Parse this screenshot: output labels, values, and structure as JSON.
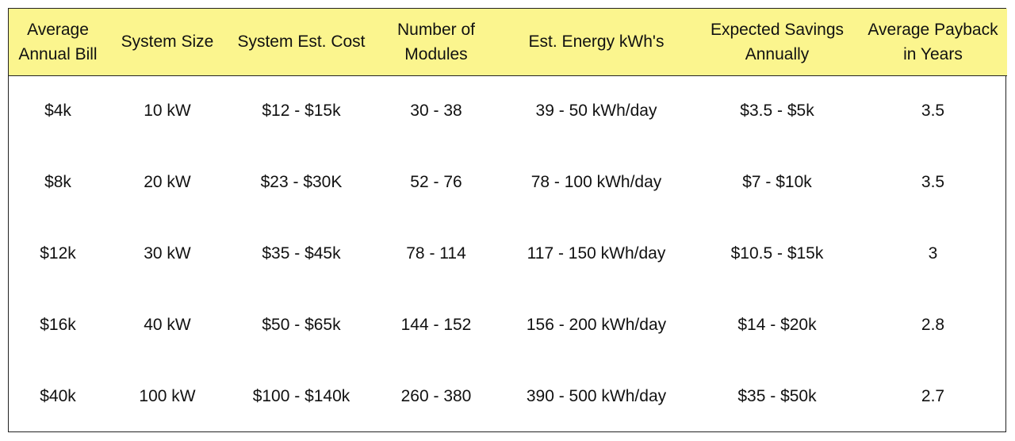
{
  "table": {
    "headers": [
      {
        "line1": "Average",
        "line2": "Annual Bill"
      },
      {
        "line1": "System Size",
        "line2": ""
      },
      {
        "line1": "System Est. Cost",
        "line2": ""
      },
      {
        "line1": "Number of",
        "line2": "Modules"
      },
      {
        "line1": "Est. Energy kWh's",
        "line2": ""
      },
      {
        "line1": "Expected Savings",
        "line2": "Annually"
      },
      {
        "line1": "Average Payback",
        "line2": "in Years"
      }
    ],
    "rows": [
      [
        "$4k",
        "10 kW",
        "$12 - $15k",
        "30 - 38",
        "39 - 50 kWh/day",
        "$3.5 - $5k",
        "3.5"
      ],
      [
        "$8k",
        "20 kW",
        "$23 - $30K",
        "52 - 76",
        "78 - 100 kWh/day",
        "$7 - $10k",
        "3.5"
      ],
      [
        "$12k",
        "30 kW",
        "$35 - $45k",
        "78 - 114",
        "117 - 150 kWh/day",
        "$10.5 - $15k",
        "3"
      ],
      [
        "$16k",
        "40 kW",
        "$50 - $65k",
        "144 - 152",
        "156 - 200 kWh/day",
        "$14 - $20k",
        "2.8"
      ],
      [
        "$40k",
        "100 kW",
        "$100 - $140k",
        "260 - 380",
        "390 - 500 kWh/day",
        "$35 - $50k",
        "2.7"
      ]
    ]
  },
  "colors": {
    "header_background": "#fbf58e",
    "border": "#222222",
    "text": "#111111"
  }
}
